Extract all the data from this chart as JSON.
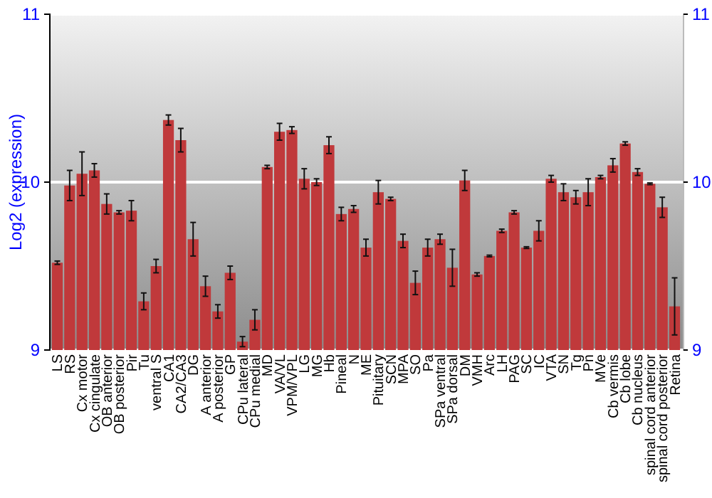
{
  "chart_data": {
    "type": "bar",
    "ylabel": "Log2 (expression)",
    "categories": [
      "LS",
      "RS",
      "Cx motor",
      "Cx cingulate",
      "OB anterior",
      "OB posterior",
      "Pir",
      "Tu",
      "ventral S",
      "CA1",
      "CA2/CA3",
      "DG",
      "A anterior",
      "A posterior",
      "GP",
      "CPu lateral",
      "CPu medial",
      "MD",
      "VA/VL",
      "VPM/VPL",
      "LG",
      "MG",
      "Hb",
      "Pineal",
      "N",
      "ME",
      "Pituitary",
      "SCN",
      "MPA",
      "SO",
      "Pa",
      "SPa ventral",
      "SPa dorsal",
      "DM",
      "VMH",
      "Arc",
      "LH",
      "PAG",
      "SC",
      "IC",
      "VTA",
      "SN",
      "Tg",
      "Pn",
      "MVe",
      "Cb vermis",
      "Cb lobe",
      "Cb nucleus",
      "spinal cord anterior",
      "spinal cord posterior",
      "Retina"
    ],
    "values": [
      9.52,
      9.98,
      10.05,
      10.07,
      9.87,
      9.82,
      9.83,
      9.29,
      9.5,
      10.37,
      10.25,
      9.66,
      9.38,
      9.23,
      9.46,
      9.05,
      9.18,
      10.09,
      10.3,
      10.31,
      10.02,
      10.0,
      10.22,
      9.81,
      9.84,
      9.61,
      9.94,
      9.9,
      9.65,
      9.4,
      9.61,
      9.66,
      9.49,
      10.01,
      9.45,
      9.56,
      9.71,
      9.82,
      9.61,
      9.71,
      10.02,
      9.94,
      9.91,
      9.94,
      10.03,
      10.1,
      10.23,
      10.06,
      9.99,
      9.85,
      9.26
    ],
    "errors": [
      0.01,
      0.09,
      0.13,
      0.04,
      0.06,
      0.01,
      0.06,
      0.05,
      0.04,
      0.03,
      0.07,
      0.1,
      0.06,
      0.04,
      0.04,
      0.03,
      0.06,
      0.01,
      0.05,
      0.02,
      0.06,
      0.02,
      0.05,
      0.04,
      0.02,
      0.05,
      0.07,
      0.01,
      0.04,
      0.07,
      0.05,
      0.03,
      0.11,
      0.06,
      0.01,
      0.005,
      0.01,
      0.01,
      0.005,
      0.06,
      0.02,
      0.05,
      0.04,
      0.08,
      0.01,
      0.04,
      0.01,
      0.02,
      0.005,
      0.06,
      0.17
    ],
    "color": "#c0393b",
    "ylim": [
      9,
      11
    ],
    "yticks": [
      9,
      10,
      11
    ],
    "y2lim": [
      9,
      11
    ],
    "y2ticks": [
      9,
      10,
      11
    ],
    "grid": "y"
  }
}
